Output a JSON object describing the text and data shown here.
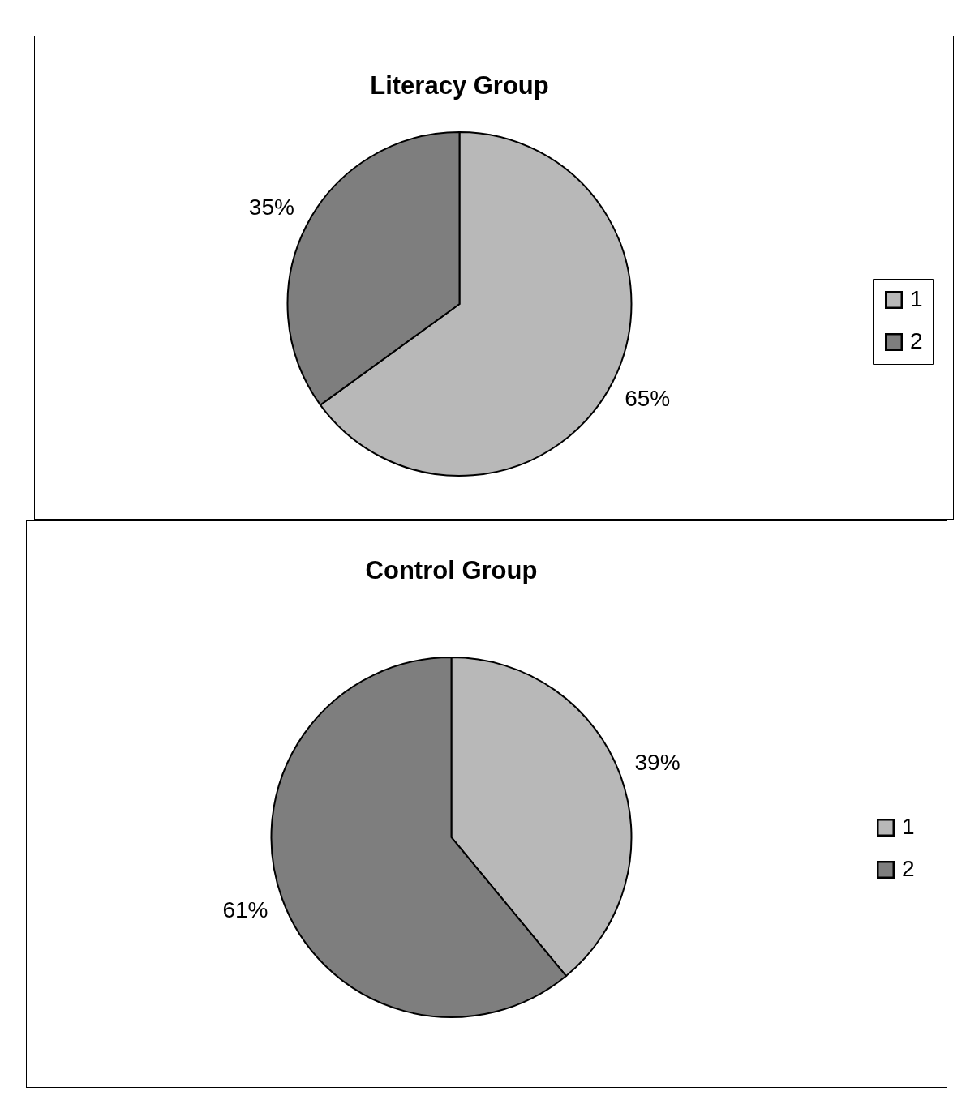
{
  "chart_data": [
    {
      "type": "pie",
      "title": "Literacy Group",
      "categories": [
        "1",
        "2"
      ],
      "values": [
        65,
        35
      ],
      "colors": [
        "#b8b8b8",
        "#7e7e7e"
      ],
      "value_labels": [
        "65%",
        "35%"
      ],
      "legend": "right"
    },
    {
      "type": "pie",
      "title": "Control Group",
      "categories": [
        "1",
        "2"
      ],
      "values": [
        39,
        61
      ],
      "colors": [
        "#b8b8b8",
        "#7e7e7e"
      ],
      "value_labels": [
        "39%",
        "61%"
      ],
      "legend": "right"
    }
  ]
}
